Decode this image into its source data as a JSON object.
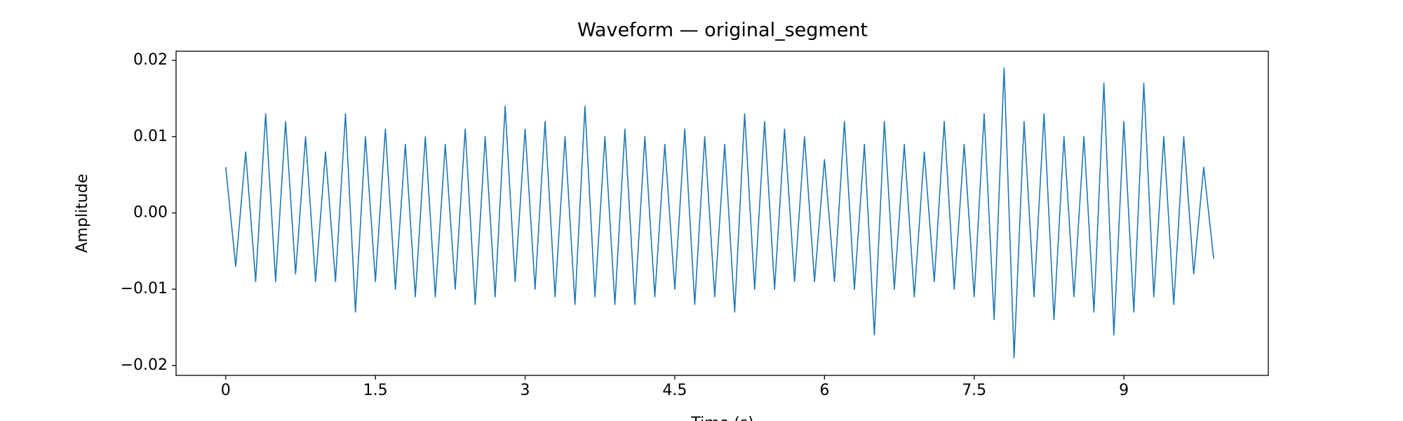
{
  "chart_data": {
    "type": "line",
    "title": "Waveform — original_segment",
    "x_label": "Time (s)",
    "y_label": "Amplitude",
    "color": "#1f77b4",
    "x": [
      0,
      0.1,
      0.2,
      0.3,
      0.4,
      0.5,
      0.6,
      0.7,
      0.8,
      0.9,
      1.0,
      1.1,
      1.2,
      1.3,
      1.4,
      1.5,
      1.6,
      1.7,
      1.8,
      1.9,
      2.0,
      2.1,
      2.2,
      2.3,
      2.4,
      2.5,
      2.6,
      2.7,
      2.8,
      2.9,
      3.0,
      3.1,
      3.2,
      3.3,
      3.4,
      3.5,
      3.6,
      3.7,
      3.8,
      3.9,
      4.0,
      4.1,
      4.2,
      4.3,
      4.4,
      4.5,
      4.6,
      4.7,
      4.8,
      4.9,
      5.0,
      5.1,
      5.2,
      5.3,
      5.4,
      5.5,
      5.6,
      5.7,
      5.8,
      5.9,
      6.0,
      6.1,
      6.2,
      6.3,
      6.4,
      6.5,
      6.6,
      6.7,
      6.8,
      6.9,
      7.0,
      7.1,
      7.2,
      7.3,
      7.4,
      7.5,
      7.6,
      7.7,
      7.8,
      7.9,
      8.0,
      8.1,
      8.2,
      8.3,
      8.4,
      8.5,
      8.6,
      8.7,
      8.8,
      8.9,
      9.0,
      9.1,
      9.2,
      9.3,
      9.4,
      9.5,
      9.6,
      9.7,
      9.8,
      9.9
    ],
    "values": [
      0.006,
      -0.007,
      0.008,
      -0.009,
      0.013,
      -0.009,
      0.012,
      -0.008,
      0.01,
      -0.009,
      0.008,
      -0.009,
      0.013,
      -0.013,
      0.01,
      -0.009,
      0.011,
      -0.01,
      0.009,
      -0.011,
      0.01,
      -0.011,
      0.009,
      -0.01,
      0.011,
      -0.012,
      0.01,
      -0.011,
      0.014,
      -0.009,
      0.011,
      -0.01,
      0.012,
      -0.011,
      0.01,
      -0.012,
      0.014,
      -0.011,
      0.01,
      -0.012,
      0.011,
      -0.012,
      0.01,
      -0.011,
      0.009,
      -0.01,
      0.011,
      -0.012,
      0.01,
      -0.011,
      0.009,
      -0.013,
      0.013,
      -0.01,
      0.012,
      -0.01,
      0.011,
      -0.009,
      0.01,
      -0.009,
      0.007,
      -0.009,
      0.012,
      -0.01,
      0.009,
      -0.016,
      0.012,
      -0.01,
      0.009,
      -0.011,
      0.008,
      -0.009,
      0.012,
      -0.01,
      0.009,
      -0.011,
      0.013,
      -0.014,
      0.019,
      -0.019,
      0.012,
      -0.011,
      0.013,
      -0.014,
      0.01,
      -0.011,
      0.01,
      -0.013,
      0.017,
      -0.016,
      0.012,
      -0.013,
      0.017,
      -0.011,
      0.01,
      -0.012,
      0.01,
      -0.008,
      0.006,
      -0.006
    ],
    "xlim": [
      -0.4975,
      10.4475
    ],
    "xticks": [
      0,
      1.5,
      3,
      4.5,
      6,
      7.5,
      9
    ],
    "ylim": [
      -0.0213,
      0.0212
    ],
    "yticks": [
      {
        "value": -0.02,
        "label": "−0.02"
      },
      {
        "value": -0.01,
        "label": "−0.01"
      },
      {
        "value": 0,
        "label": "0.00"
      },
      0.01,
      0.02
    ]
  }
}
